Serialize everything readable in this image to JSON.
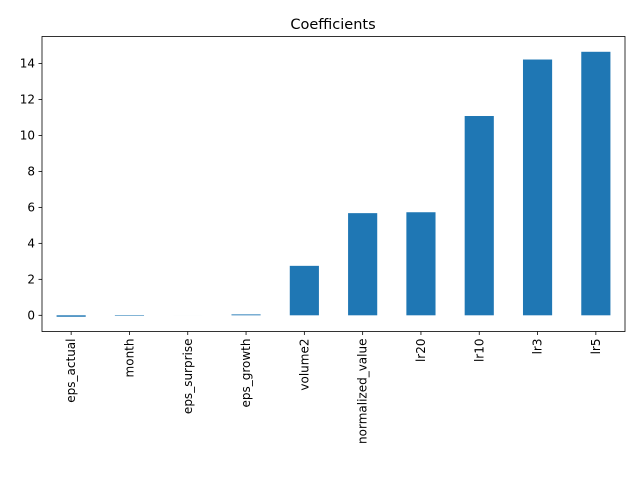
{
  "chart_data": {
    "type": "bar",
    "title": "Coefficients",
    "xlabel": "",
    "ylabel": "",
    "categories": [
      "eps_actual",
      "month",
      "eps_surprise",
      "eps_growth",
      "volume2",
      "normalized_value",
      "lr20",
      "lr10",
      "lr3",
      "lr5"
    ],
    "values": [
      -0.08,
      -0.03,
      0.0,
      0.05,
      2.75,
      5.68,
      5.73,
      11.08,
      14.22,
      14.65
    ],
    "ylim": [
      -0.9,
      15.5
    ],
    "yticks": [
      0,
      2,
      4,
      6,
      8,
      10,
      12,
      14
    ],
    "grid": false,
    "legend": "none",
    "bar_color": "#1f77b4"
  }
}
